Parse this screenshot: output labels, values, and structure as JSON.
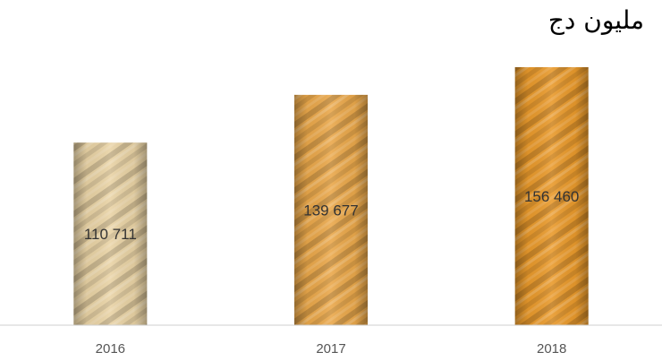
{
  "chart_data": {
    "type": "bar",
    "title": "مليون دج",
    "categories": [
      "2016",
      "2017",
      "2018"
    ],
    "values": [
      110711,
      139677,
      156460
    ],
    "data_labels": [
      "110 711",
      "139 677",
      "156 460"
    ],
    "xlabel": "",
    "ylabel": "",
    "grid": false,
    "legend": "none",
    "colors": {
      "bars": [
        "#e9d3a5",
        "#eaa84b",
        "#e99a2c"
      ],
      "baseline": "#cfcfcf",
      "tick_text": "#555555",
      "label_text": "#333333"
    }
  }
}
